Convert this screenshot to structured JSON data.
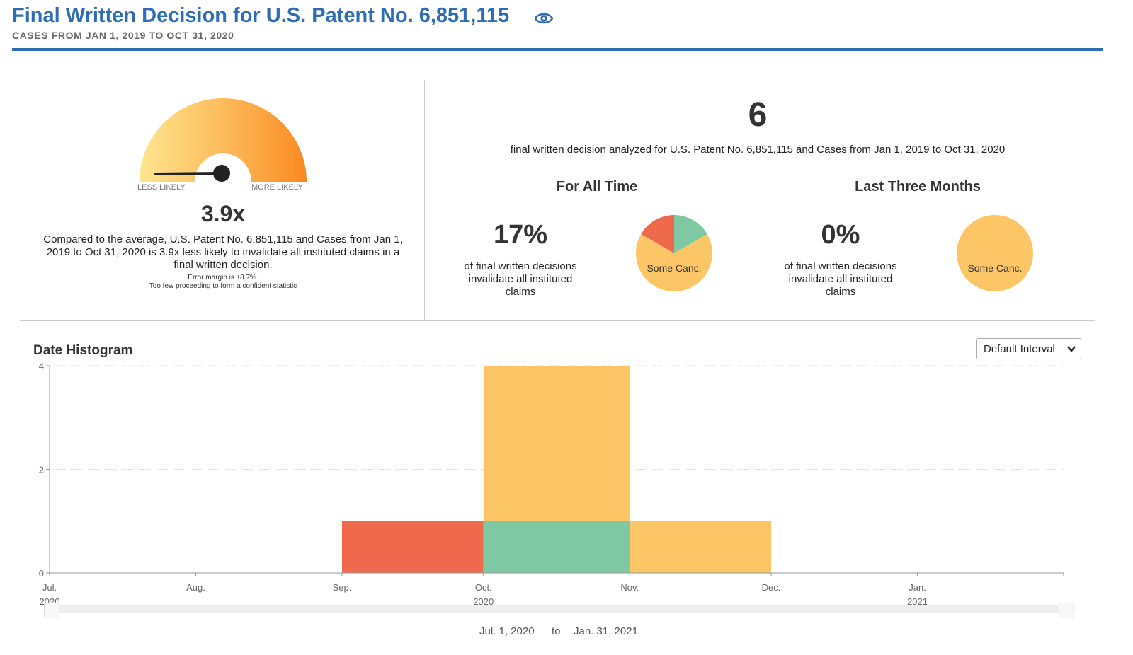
{
  "header": {
    "title": "Final Written Decision for U.S. Patent No. 6,851,115",
    "subtitle": "CASES FROM JAN 1, 2019 TO OCT 31, 2020",
    "icon": "eye-icon",
    "accent_color": "#2e6db4"
  },
  "gauge": {
    "less_label": "LESS LIKELY",
    "more_label": "MORE LIKELY",
    "value_text": "3.9x",
    "description": "Compared to the average, U.S. Patent No. 6,851,115 and Cases from Jan 1, 2019 to Oct 31, 2020 is 3.9x less likely to invalidate all instituted claims in a final written decision.",
    "error_margin": "Error margin is ±8.7%.",
    "confidence_note": "Too few proceeding to form a confident statistic"
  },
  "summary": {
    "count": "6",
    "description": "final written decision analyzed for U.S. Patent No. 6,851,115 and Cases from Jan 1, 2019 to Oct 31, 2020"
  },
  "all_time": {
    "title": "For All Time",
    "percent": "17%",
    "description": "of final written decisions invalidate all instituted claims",
    "pie_label": "Some Canc.",
    "slices": [
      {
        "category": "all",
        "fraction": 0.1667,
        "color": "#7ec8a4"
      },
      {
        "category": "some",
        "fraction": 0.6667,
        "color": "#fcc566"
      },
      {
        "category": "none",
        "fraction": 0.1667,
        "color": "#ef6a4c"
      }
    ]
  },
  "last_three_months": {
    "title": "Last Three Months",
    "percent": "0%",
    "description": "of final written decisions invalidate all instituted claims",
    "pie_label": "Some Canc.",
    "color": "#fcc566"
  },
  "histogram": {
    "title": "Date Histogram",
    "interval_option": "Default Interval",
    "range_from": "Jul. 1, 2020",
    "range_sep": "to",
    "range_to": "Jan. 31, 2021"
  },
  "chart_data": {
    "type": "bar",
    "stacked": true,
    "x_ticks": [
      {
        "month": "Jul.",
        "year": "2020"
      },
      {
        "month": "Aug.",
        "year": ""
      },
      {
        "month": "Sep.",
        "year": ""
      },
      {
        "month": "Oct.",
        "year": "2020"
      },
      {
        "month": "Nov.",
        "year": ""
      },
      {
        "month": "Dec.",
        "year": ""
      },
      {
        "month": "Jan.",
        "year": "2021"
      }
    ],
    "y_ticks": [
      "0",
      "2",
      "4"
    ],
    "ylim": [
      0,
      4
    ],
    "grid": true,
    "bars": [
      {
        "start": "2020-09-01",
        "end": "2020-10-01",
        "segments": [
          {
            "value": 1,
            "color": "#ef6a4c"
          }
        ]
      },
      {
        "start": "2020-10-01",
        "end": "2020-11-01",
        "segments": [
          {
            "value": 1,
            "color": "#7ec8a4"
          },
          {
            "value": 3,
            "color": "#fcc566"
          }
        ]
      },
      {
        "start": "2020-11-01",
        "end": "2020-12-01",
        "segments": [
          {
            "value": 1,
            "color": "#fcc566"
          }
        ]
      }
    ]
  }
}
